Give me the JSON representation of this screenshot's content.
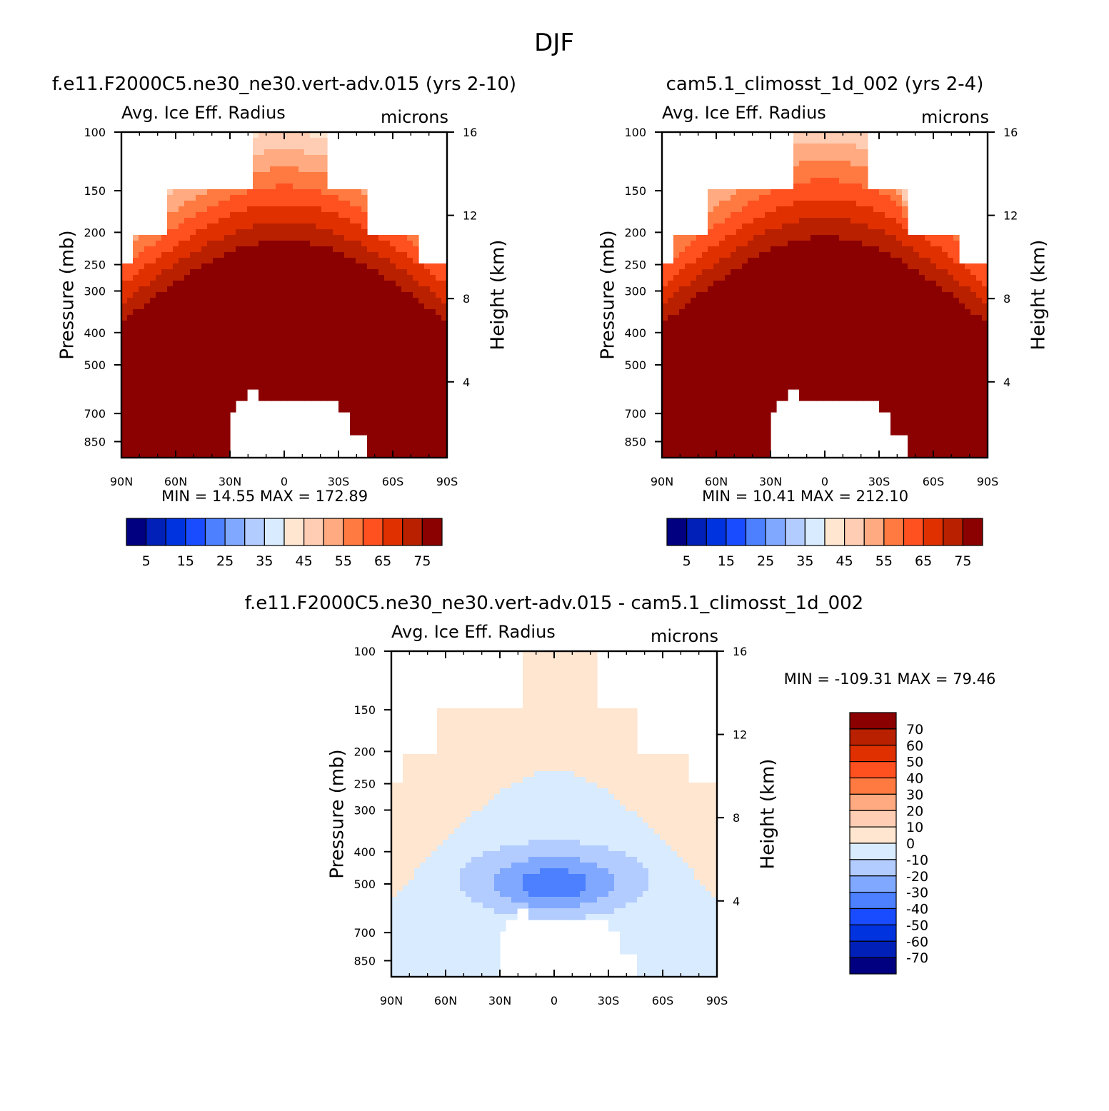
{
  "figure": {
    "title": "DJF"
  },
  "colors": {
    "seq": [
      "#000080",
      "#0020b8",
      "#0033e0",
      "#1a4cff",
      "#4c80ff",
      "#80a8ff",
      "#b3ccff",
      "#d9ebff",
      "#ffe6d0",
      "#ffcdb3",
      "#ffaa80",
      "#ff7a40",
      "#ff5020",
      "#e03000",
      "#b82000",
      "#8b0000"
    ],
    "diff": [
      "#000080",
      "#0020b8",
      "#0033e0",
      "#1a4cff",
      "#4c80ff",
      "#80a8ff",
      "#b3ccff",
      "#d9ebff",
      "#ffe6d0",
      "#ffcdb3",
      "#ffaa80",
      "#ff7a40",
      "#ff5020",
      "#e03000",
      "#b82000",
      "#8b0000"
    ]
  },
  "chart_data": [
    {
      "id": "panel-a",
      "type": "contour",
      "case": "f.e11.F2000C5.ne30_ne30.vert-adv.015 (yrs 2-10)",
      "variable": "Avg. Ice Eff. Radius",
      "units": "microns",
      "ylabel": "Pressure (mb)",
      "y2label": "Height (km)",
      "xticks": [
        "90N",
        "60N",
        "30N",
        "0",
        "30S",
        "60S",
        "90S"
      ],
      "yticks": [
        "100",
        "150",
        "200",
        "250",
        "300",
        "400",
        "500",
        "700",
        "850"
      ],
      "y2ticks": [
        "16",
        "12",
        "8",
        "4"
      ],
      "min_max": "MIN =   14.55   MAX =  172.89",
      "levels": [
        "5",
        "15",
        "25",
        "35",
        "45",
        "55",
        "65",
        "75"
      ],
      "contour_levels": [
        5,
        10,
        15,
        20,
        25,
        30,
        35,
        40,
        45,
        50,
        55,
        60,
        65,
        70,
        75
      ]
    },
    {
      "id": "panel-b",
      "type": "contour",
      "case": "cam5.1_climosst_1d_002 (yrs 2-4)",
      "variable": "Avg. Ice Eff. Radius",
      "units": "microns",
      "ylabel": "Pressure (mb)",
      "y2label": "Height (km)",
      "xticks": [
        "90N",
        "60N",
        "30N",
        "0",
        "30S",
        "60S",
        "90S"
      ],
      "yticks": [
        "100",
        "150",
        "200",
        "250",
        "300",
        "400",
        "500",
        "700",
        "850"
      ],
      "y2ticks": [
        "16",
        "12",
        "8",
        "4"
      ],
      "min_max": "MIN =   10.41   MAX =  212.10",
      "levels": [
        "5",
        "15",
        "25",
        "35",
        "45",
        "55",
        "65",
        "75"
      ],
      "contour_levels": [
        5,
        10,
        15,
        20,
        25,
        30,
        35,
        40,
        45,
        50,
        55,
        60,
        65,
        70,
        75
      ]
    },
    {
      "id": "panel-diff",
      "type": "contour",
      "case": "f.e11.F2000C5.ne30_ne30.vert-adv.015 - cam5.1_climosst_1d_002",
      "variable": "Avg. Ice Eff. Radius",
      "units": "microns",
      "ylabel": "Pressure (mb)",
      "y2label": "Height (km)",
      "xticks": [
        "90N",
        "60N",
        "30N",
        "0",
        "30S",
        "60S",
        "90S"
      ],
      "yticks": [
        "100",
        "150",
        "200",
        "250",
        "300",
        "400",
        "500",
        "700",
        "850"
      ],
      "y2ticks": [
        "16",
        "12",
        "8",
        "4"
      ],
      "min_max": "MIN = -109.31   MAX =  79.46",
      "levels": [
        "70",
        "60",
        "50",
        "40",
        "30",
        "20",
        "10",
        "0",
        "-10",
        "-20",
        "-30",
        "-40",
        "-50",
        "-60",
        "-70"
      ],
      "contour_levels": [
        -70,
        -60,
        -50,
        -40,
        -30,
        -20,
        -10,
        0,
        10,
        20,
        30,
        40,
        50,
        60,
        70
      ]
    }
  ]
}
